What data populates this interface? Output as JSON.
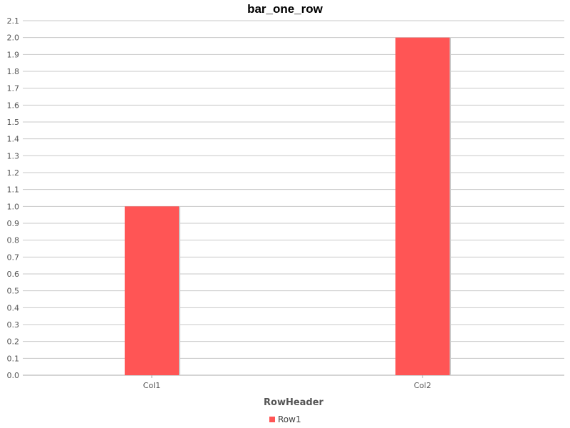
{
  "chart_data": {
    "type": "bar",
    "title": "bar_one_row",
    "categories": [
      "Col1",
      "Col2"
    ],
    "series": [
      {
        "name": "Row1",
        "values": [
          1.0,
          2.0
        ],
        "color": "#ff5555"
      }
    ],
    "xlabel": "RowHeader",
    "ylabel": "",
    "ylim": [
      0,
      2.1
    ],
    "ytick_step": 0.1,
    "grid": true,
    "legend_position": "bottom"
  }
}
